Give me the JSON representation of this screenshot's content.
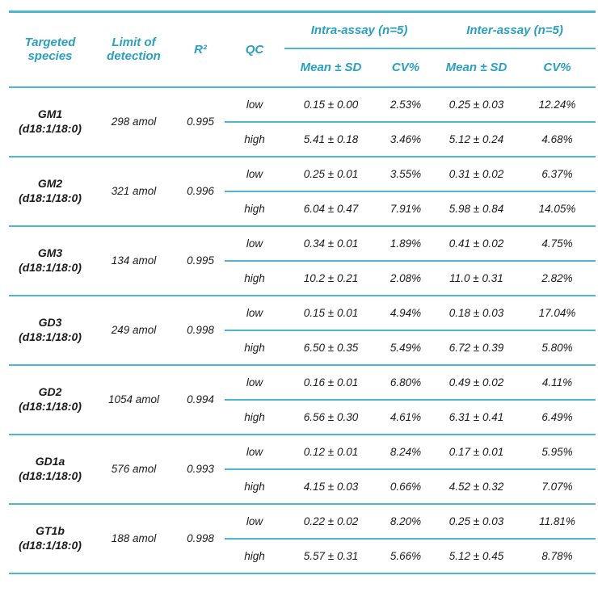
{
  "colors": {
    "header_text": "#2a9fbe",
    "rule_line": "#4db7d2",
    "body_text": "#1b1b1b"
  },
  "table": {
    "headers": {
      "targeted_species": "Targeted species",
      "limit_of_detection": "Limit of detection",
      "r_squared": "R²",
      "qc": "QC",
      "intra_assay": "Intra-assay (n=5)",
      "inter_assay": "Inter-assay (n=5)",
      "mean_sd": "Mean ± SD",
      "cv": "CV%"
    },
    "rows": [
      {
        "species": "GM1",
        "species_sub": "(d18:1/18:0)",
        "lod": "298 amol",
        "r2": "0.995",
        "qc_levels": [
          {
            "qc": "low",
            "intra_mean_sd": "0.15 ± 0.00",
            "intra_cv": "2.53%",
            "inter_mean_sd": "0.25 ± 0.03",
            "inter_cv": "12.24%"
          },
          {
            "qc": "high",
            "intra_mean_sd": "5.41 ± 0.18",
            "intra_cv": "3.46%",
            "inter_mean_sd": "5.12 ± 0.24",
            "inter_cv": "4.68%"
          }
        ]
      },
      {
        "species": "GM2",
        "species_sub": "(d18:1/18:0)",
        "lod": "321 amol",
        "r2": "0.996",
        "qc_levels": [
          {
            "qc": "low",
            "intra_mean_sd": "0.25 ± 0.01",
            "intra_cv": "3.55%",
            "inter_mean_sd": "0.31 ± 0.02",
            "inter_cv": "6.37%"
          },
          {
            "qc": "high",
            "intra_mean_sd": "6.04 ± 0.47",
            "intra_cv": "7.91%",
            "inter_mean_sd": "5.98 ± 0.84",
            "inter_cv": "14.05%"
          }
        ]
      },
      {
        "species": "GM3",
        "species_sub": "(d18:1/18:0)",
        "lod": "134 amol",
        "r2": "0.995",
        "qc_levels": [
          {
            "qc": "low",
            "intra_mean_sd": "0.34 ± 0.01",
            "intra_cv": "1.89%",
            "inter_mean_sd": "0.41 ± 0.02",
            "inter_cv": "4.75%"
          },
          {
            "qc": "high",
            "intra_mean_sd": "10.2 ± 0.21",
            "intra_cv": "2.08%",
            "inter_mean_sd": "11.0 ± 0.31",
            "inter_cv": "2.82%"
          }
        ]
      },
      {
        "species": "GD3",
        "species_sub": "(d18:1/18:0)",
        "lod": "249 amol",
        "r2": "0.998",
        "qc_levels": [
          {
            "qc": "low",
            "intra_mean_sd": "0.15 ± 0.01",
            "intra_cv": "4.94%",
            "inter_mean_sd": "0.18 ± 0.03",
            "inter_cv": "17.04%"
          },
          {
            "qc": "high",
            "intra_mean_sd": "6.50 ± 0.35",
            "intra_cv": "5.49%",
            "inter_mean_sd": "6.72 ± 0.39",
            "inter_cv": "5.80%"
          }
        ]
      },
      {
        "species": "GD2",
        "species_sub": "(d18:1/18:0)",
        "lod": "1054 amol",
        "r2": "0.994",
        "qc_levels": [
          {
            "qc": "low",
            "intra_mean_sd": "0.16 ± 0.01",
            "intra_cv": "6.80%",
            "inter_mean_sd": "0.49 ± 0.02",
            "inter_cv": "4.11%"
          },
          {
            "qc": "high",
            "intra_mean_sd": "6.56 ± 0.30",
            "intra_cv": "4.61%",
            "inter_mean_sd": "6.31 ± 0.41",
            "inter_cv": "6.49%"
          }
        ]
      },
      {
        "species": "GD1a",
        "species_sub": "(d18:1/18:0)",
        "lod": "576 amol",
        "r2": "0.993",
        "qc_levels": [
          {
            "qc": "low",
            "intra_mean_sd": "0.12 ± 0.01",
            "intra_cv": "8.24%",
            "inter_mean_sd": "0.17 ± 0.01",
            "inter_cv": "5.95%"
          },
          {
            "qc": "high",
            "intra_mean_sd": "4.15 ± 0.03",
            "intra_cv": "0.66%",
            "inter_mean_sd": "4.52 ± 0.32",
            "inter_cv": "7.07%"
          }
        ]
      },
      {
        "species": "GT1b",
        "species_sub": "(d18:1/18:0)",
        "lod": "188 amol",
        "r2": "0.998",
        "qc_levels": [
          {
            "qc": "low",
            "intra_mean_sd": "0.22 ± 0.02",
            "intra_cv": "8.20%",
            "inter_mean_sd": "0.25 ± 0.03",
            "inter_cv": "11.81%"
          },
          {
            "qc": "high",
            "intra_mean_sd": "5.57 ± 0.31",
            "intra_cv": "5.66%",
            "inter_mean_sd": "5.12 ± 0.45",
            "inter_cv": "8.78%"
          }
        ]
      }
    ]
  }
}
